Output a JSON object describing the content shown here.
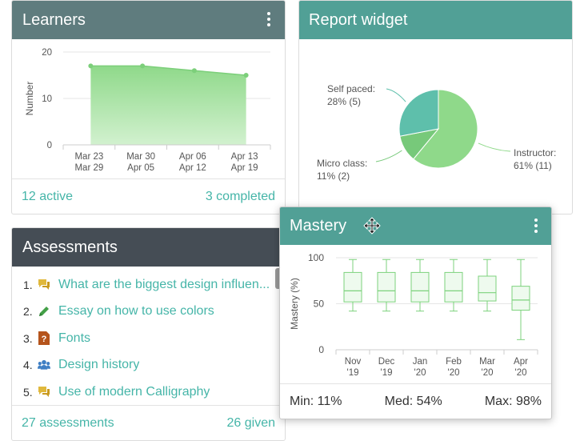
{
  "learners": {
    "title": "Learners",
    "footer_left": "12 active",
    "footer_right": "3 completed"
  },
  "report": {
    "title": "Report widget"
  },
  "assessments": {
    "title": "Assessments",
    "items": [
      {
        "num": "1.",
        "icon": "chat-bubble-icon",
        "label": "What are the biggest design influen..."
      },
      {
        "num": "2.",
        "icon": "pencil-icon",
        "label": "Essay on how to use colors"
      },
      {
        "num": "3.",
        "icon": "question-doc-icon",
        "label": "Fonts"
      },
      {
        "num": "4.",
        "icon": "group-icon",
        "label": "Design history"
      },
      {
        "num": "5.",
        "icon": "chat-bubble-icon",
        "label": "Use of modern Calligraphy"
      }
    ],
    "footer_left": "27 assessments",
    "footer_right": "26 given"
  },
  "mastery": {
    "title": "Mastery",
    "footer_min": "Min: 11%",
    "footer_med": "Med: 54%",
    "footer_max": "Max: 98%"
  },
  "colors": {
    "teal": "#51a096",
    "slate": "#5f7c7e",
    "dark": "#454d55",
    "link": "#45b5a8",
    "chart_green": "#7fd17f"
  },
  "chart_data": [
    {
      "type": "area",
      "ylabel": "Number",
      "ylim": [
        0,
        20
      ],
      "yticks": [
        "0",
        "10",
        "20"
      ],
      "categories": [
        [
          "Mar 23",
          "Mar 29"
        ],
        [
          "Mar 30",
          "Apr 05"
        ],
        [
          "Apr 06",
          "Apr 12"
        ],
        [
          "Apr 13",
          "Apr 19"
        ]
      ],
      "values": [
        17,
        17,
        16,
        15
      ]
    },
    {
      "type": "pie",
      "slices": [
        {
          "label": "Instructor:",
          "detail": "61% (11)",
          "value": 61,
          "color": "#8fd98a"
        },
        {
          "label": "Micro class:",
          "detail": "11% (2)",
          "value": 11,
          "color": "#77c97a"
        },
        {
          "label": "Self paced:",
          "detail": "28% (5)",
          "value": 28,
          "color": "#5ebfab"
        }
      ]
    },
    {
      "type": "box",
      "ylabel": "Mastery (%)",
      "ylim": [
        0,
        100
      ],
      "yticks": [
        "0",
        "50",
        "100"
      ],
      "categories": [
        [
          "Nov",
          "'19"
        ],
        [
          "Dec",
          "'19"
        ],
        [
          "Jan",
          "'20"
        ],
        [
          "Feb",
          "'20"
        ],
        [
          "Mar",
          "'20"
        ],
        [
          "Apr",
          "'20"
        ]
      ],
      "boxes": [
        {
          "min": 42,
          "q1": 52,
          "median": 64,
          "q3": 84,
          "max": 98
        },
        {
          "min": 42,
          "q1": 52,
          "median": 64,
          "q3": 84,
          "max": 98
        },
        {
          "min": 42,
          "q1": 52,
          "median": 64,
          "q3": 84,
          "max": 98
        },
        {
          "min": 42,
          "q1": 52,
          "median": 64,
          "q3": 84,
          "max": 98
        },
        {
          "min": 42,
          "q1": 53,
          "median": 62,
          "q3": 80,
          "max": 98
        },
        {
          "min": 11,
          "q1": 43,
          "median": 54,
          "q3": 69,
          "max": 98
        }
      ]
    }
  ]
}
